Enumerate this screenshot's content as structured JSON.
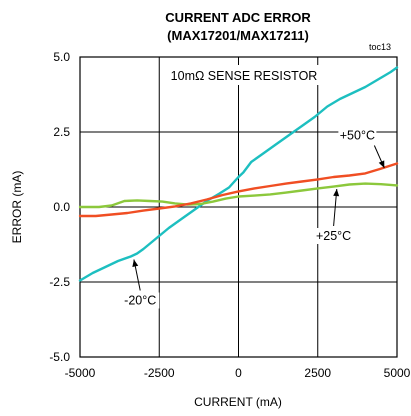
{
  "chart_data": {
    "type": "line",
    "title": "CURRENT ADC ERROR",
    "subtitle": "(MAX17201/MAX17211)",
    "tag": "toc13",
    "xlabel": "CURRENT (mA)",
    "ylabel": "ERROR (mA)",
    "xlim": [
      -5000,
      5000
    ],
    "ylim": [
      -5.0,
      5.0
    ],
    "x_ticks": [
      -5000,
      -2500,
      0,
      2500,
      5000
    ],
    "x_tick_labels": [
      "-5000",
      "-2500",
      "0",
      "2500",
      "5000"
    ],
    "y_ticks": [
      -5.0,
      -2.5,
      0.0,
      2.5,
      5.0
    ],
    "y_tick_labels": [
      "-5.0",
      "-2.5",
      "0.0",
      "2.5",
      "5.0"
    ],
    "grid": true,
    "annotation": "10mΩ SENSE RESISTOR",
    "series": [
      {
        "name": "-20°C",
        "color": "#1dbfc0",
        "x": [
          -5000,
          -4600,
          -4200,
          -3800,
          -3400,
          -3200,
          -3000,
          -2600,
          -2200,
          -1800,
          -1400,
          -1000,
          -600,
          -300,
          0,
          150,
          400,
          800,
          1200,
          1600,
          2000,
          2400,
          2800,
          3200,
          3600,
          4000,
          4400,
          4800,
          5000
        ],
        "y": [
          -2.45,
          -2.2,
          -2.0,
          -1.8,
          -1.65,
          -1.55,
          -1.4,
          -1.05,
          -0.7,
          -0.4,
          -0.1,
          0.2,
          0.45,
          0.65,
          1.0,
          1.15,
          1.5,
          1.8,
          2.1,
          2.4,
          2.7,
          3.0,
          3.35,
          3.6,
          3.8,
          4.0,
          4.25,
          4.5,
          4.65
        ]
      },
      {
        "name": "+25°C",
        "color": "#8cc83c",
        "x": [
          -5000,
          -4400,
          -4000,
          -3600,
          -3200,
          -2800,
          -2400,
          -2000,
          -1600,
          -1200,
          -800,
          -400,
          0,
          500,
          1000,
          1500,
          2000,
          2500,
          3000,
          3500,
          4000,
          4500,
          5000
        ],
        "y": [
          0.0,
          0.0,
          0.05,
          0.2,
          0.22,
          0.2,
          0.18,
          0.12,
          0.08,
          0.1,
          0.18,
          0.28,
          0.35,
          0.38,
          0.42,
          0.48,
          0.55,
          0.62,
          0.68,
          0.75,
          0.78,
          0.76,
          0.72
        ]
      },
      {
        "name": "+50°C",
        "color": "#f04e23",
        "x": [
          -5000,
          -4500,
          -4000,
          -3500,
          -3000,
          -2500,
          -2000,
          -1500,
          -1000,
          -500,
          0,
          500,
          1000,
          1500,
          2000,
          2500,
          3000,
          3500,
          4000,
          4500,
          5000
        ],
        "y": [
          -0.3,
          -0.3,
          -0.25,
          -0.2,
          -0.12,
          -0.05,
          0.02,
          0.12,
          0.25,
          0.4,
          0.52,
          0.62,
          0.7,
          0.78,
          0.85,
          0.92,
          1.0,
          1.05,
          1.12,
          1.28,
          1.45
        ]
      }
    ],
    "labels": [
      {
        "text": "+50°C",
        "series": "+50°C",
        "at": [
          4600,
          1.3
        ],
        "text_at": [
          3750,
          2.25
        ]
      },
      {
        "text": "+25°C",
        "series": "+25°C",
        "at": [
          3100,
          0.6
        ],
        "text_at": [
          3000,
          -1.1
        ]
      },
      {
        "text": "-20°C",
        "series": "-20°C",
        "at": [
          -3300,
          -1.75
        ],
        "text_at": [
          -3100,
          -3.25
        ]
      }
    ]
  }
}
